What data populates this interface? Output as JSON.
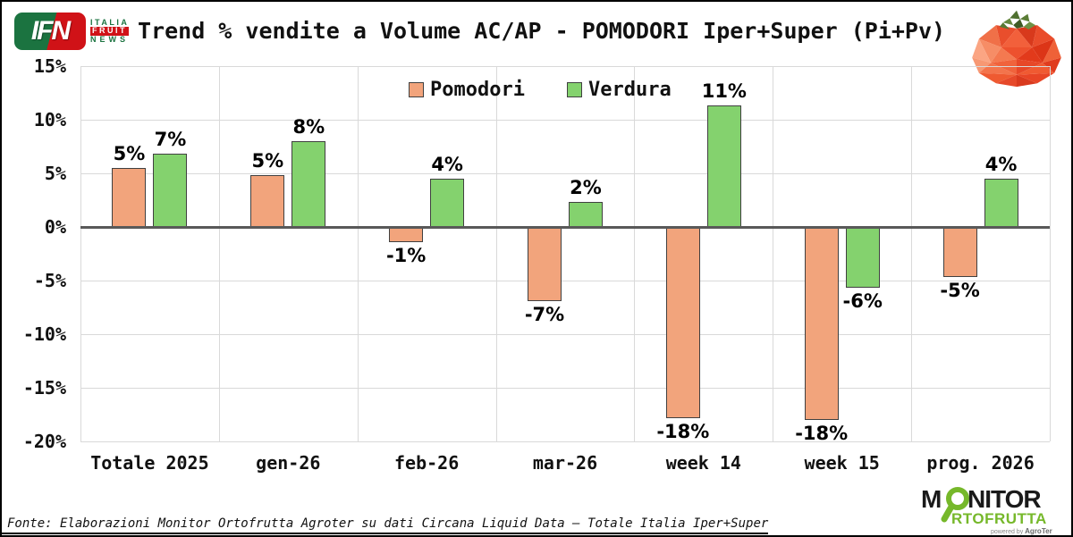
{
  "header": {
    "ifn_logo": {
      "abbr": "IFN",
      "italia": "ITALIA",
      "fruit": "FRUIT",
      "news": "NEWS"
    }
  },
  "chart_data": {
    "type": "bar",
    "title": "Trend % vendite a Volume AC/AP - POMODORI Iper+Super (Pi+Pv)",
    "categories": [
      "Totale 2025",
      "gen-26",
      "feb-26",
      "mar-26",
      "week 14",
      "week 15",
      "prog. 2026"
    ],
    "series": [
      {
        "name": "Pomodori",
        "color": "#F2A47C",
        "values": [
          5,
          5,
          -1,
          -7,
          -18,
          -18,
          -5
        ],
        "labels": [
          "5%",
          "5%",
          "-1%",
          "-7%",
          "-18%",
          "-18%",
          "-5%"
        ],
        "visual_values": [
          5.5,
          4.8,
          -1.4,
          -6.9,
          -17.8,
          -18,
          -4.7
        ]
      },
      {
        "name": "Verdura",
        "color": "#84D26E",
        "values": [
          7,
          8,
          4,
          2,
          11,
          -6,
          4
        ],
        "labels": [
          "7%",
          "8%",
          "4%",
          "2%",
          "11%",
          "-6%",
          "4%"
        ],
        "visual_values": [
          6.8,
          8,
          4.5,
          2.3,
          11.3,
          -5.7,
          4.5
        ]
      }
    ],
    "y_tick_labels": [
      "15%",
      "10%",
      "5%",
      "0%",
      "-5%",
      "-10%",
      "-15%",
      "-20%"
    ],
    "y_tick_values": [
      15,
      10,
      5,
      0,
      -5,
      -10,
      -15,
      -20
    ],
    "ylim": [
      -20,
      15
    ],
    "grid": true,
    "legend_position": "top-center"
  },
  "footer": {
    "source": "Fonte: Elaborazioni Monitor Ortofrutta Agroter su dati Circana Liquid Data – Totale Italia Iper+Super"
  },
  "monitor_logo": {
    "part1": "M",
    "part2": "NITOR",
    "line2": "RTOFRUTTA",
    "powered": "powered by",
    "brand": "AgroTer"
  },
  "colors": {
    "bar_border": "#404040",
    "grid": "#D9D9D9",
    "zero_line": "#595959",
    "ifn_green": "#1B7340",
    "ifn_red": "#D01217",
    "monitor_green": "#76B82A"
  }
}
